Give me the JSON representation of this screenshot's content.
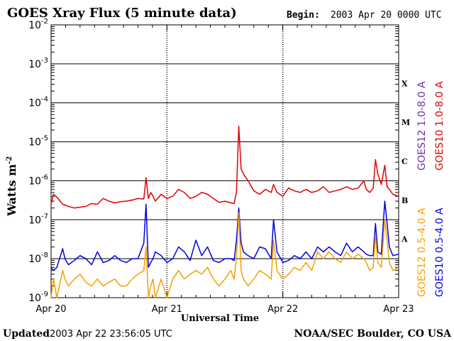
{
  "title": "GOES Xray Flux (5 minute data)",
  "begin_label": "Begin:",
  "begin_value": "2003 Apr 20 0000 UTC",
  "updated_label": "Updated",
  "updated_value": "2003 Apr 22 23:56:05 UTC",
  "credit": "NOAA/SEC Boulder, CO USA",
  "chart_data": {
    "type": "line",
    "ylabel": "Watts m",
    "ylabel_sup": "-2",
    "xlabel": "Universal Time",
    "y_scale": "log",
    "ylim": [
      "1e-9",
      "1e-2"
    ],
    "y_ticks": [
      {
        "base": "10",
        "exp": "-2"
      },
      {
        "base": "10",
        "exp": "-3"
      },
      {
        "base": "10",
        "exp": "-4"
      },
      {
        "base": "10",
        "exp": "-5"
      },
      {
        "base": "10",
        "exp": "-6"
      },
      {
        "base": "10",
        "exp": "-7"
      },
      {
        "base": "10",
        "exp": "-8"
      },
      {
        "base": "10",
        "exp": "-9"
      }
    ],
    "x_ticks": [
      "Apr 20",
      "Apr 21",
      "Apr 22",
      "Apr 23"
    ],
    "xlim_days": [
      0,
      3
    ],
    "flare_classes": [
      "X",
      "M",
      "C",
      "B",
      "A"
    ],
    "grid": true,
    "legend": "right side, rotated vertical",
    "legend_entries": {
      "long": [
        "GOES12 1.0-8.0 A",
        "GOES10 1.0-8.0 A"
      ],
      "short": [
        "GOES12 0.5-4.0 A",
        "GOES10 0.5-4.0 A"
      ]
    },
    "series": [
      {
        "name": "GOES10 1.0-8.0 A",
        "color": "#e00000",
        "x": [
          0,
          0.02,
          0.05,
          0.1,
          0.15,
          0.2,
          0.25,
          0.3,
          0.35,
          0.4,
          0.45,
          0.5,
          0.55,
          0.6,
          0.65,
          0.7,
          0.75,
          0.8,
          0.82,
          0.84,
          0.86,
          0.88,
          0.9,
          0.95,
          1.0,
          1.05,
          1.1,
          1.15,
          1.2,
          1.25,
          1.3,
          1.35,
          1.4,
          1.45,
          1.5,
          1.55,
          1.58,
          1.6,
          1.62,
          1.64,
          1.66,
          1.7,
          1.75,
          1.8,
          1.85,
          1.9,
          1.92,
          1.95,
          2.0,
          2.05,
          2.1,
          2.15,
          2.2,
          2.25,
          2.3,
          2.35,
          2.4,
          2.45,
          2.5,
          2.55,
          2.6,
          2.65,
          2.7,
          2.72,
          2.75,
          2.78,
          2.8,
          2.82,
          2.85,
          2.88,
          2.9,
          2.92,
          2.95,
          3.0
        ],
        "y": [
          "2.5e-7",
          "4.5e-7",
          "3.8e-7",
          "2.5e-7",
          "2.2e-7",
          "2.0e-7",
          "2.1e-7",
          "2.2e-7",
          "2.6e-7",
          "2.5e-7",
          "3.5e-7",
          "3.0e-7",
          "2.7e-7",
          "2.9e-7",
          "3.0e-7",
          "3.2e-7",
          "3.5e-7",
          "3.4e-7",
          "1.2e-6",
          "3.5e-7",
          "5.0e-7",
          "4.0e-7",
          "3.0e-7",
          "4.5e-7",
          "3.5e-7",
          "4.0e-7",
          "6.0e-7",
          "5.0e-7",
          "3.5e-7",
          "4.0e-7",
          "5.0e-7",
          "4.5e-7",
          "3.5e-7",
          "2.8e-7",
          "3.0e-7",
          "2.7e-7",
          "2.6e-7",
          "5.0e-7",
          "2.5e-5",
          "2.0e-6",
          "1.5e-6",
          "1.0e-6",
          "5.5e-7",
          "4.5e-7",
          "6.0e-7",
          "5.0e-7",
          "8.0e-7",
          "5.0e-7",
          "4.0e-7",
          "6.5e-7",
          "5.5e-7",
          "5.0e-7",
          "6.0e-7",
          "5.0e-7",
          "5.5e-7",
          "7.0e-7",
          "5.0e-7",
          "5.5e-7",
          "6.0e-7",
          "7.0e-7",
          "6.0e-7",
          "6.5e-7",
          "1.0e-6",
          "6.0e-7",
          "5.0e-7",
          "6.5e-7",
          "3.5e-6",
          "1.5e-6",
          "8.0e-7",
          "2.5e-6",
          "7.0e-7",
          "6.0e-7",
          "4.5e-7",
          "4.0e-7"
        ]
      },
      {
        "name": "GOES10 0.5-4.0 A",
        "color": "#0000e0",
        "x": [
          0,
          0.02,
          0.05,
          0.1,
          0.12,
          0.15,
          0.2,
          0.25,
          0.3,
          0.35,
          0.4,
          0.45,
          0.5,
          0.55,
          0.6,
          0.65,
          0.7,
          0.75,
          0.8,
          0.82,
          0.84,
          0.86,
          0.88,
          0.9,
          0.95,
          1.0,
          1.05,
          1.1,
          1.15,
          1.2,
          1.25,
          1.3,
          1.35,
          1.4,
          1.45,
          1.5,
          1.55,
          1.58,
          1.6,
          1.62,
          1.64,
          1.66,
          1.7,
          1.75,
          1.8,
          1.85,
          1.9,
          1.92,
          1.95,
          2.0,
          2.05,
          2.1,
          2.15,
          2.2,
          2.25,
          2.3,
          2.35,
          2.4,
          2.45,
          2.5,
          2.55,
          2.6,
          2.65,
          2.7,
          2.72,
          2.75,
          2.78,
          2.8,
          2.82,
          2.85,
          2.88,
          2.9,
          2.92,
          2.95,
          3.0
        ],
        "y": [
          "6.0e-9",
          "5.0e-9",
          "6.0e-9",
          "1.8e-8",
          "1.0e-8",
          "7.0e-9",
          "9.0e-9",
          "1.2e-8",
          "1.0e-8",
          "7.0e-9",
          "1.5e-8",
          "8.0e-9",
          "9.0e-9",
          "1.2e-8",
          "9.0e-9",
          "8.0e-9",
          "1.0e-8",
          "1.0e-8",
          "2.5e-8",
          "2.5e-7",
          "6.0e-9",
          "8.0e-9",
          "1.0e-8",
          "1.5e-8",
          "1.2e-8",
          "8.0e-9",
          "1.0e-8",
          "2.0e-8",
          "1.5e-8",
          "9.0e-9",
          "3.0e-8",
          "1.2e-8",
          "2.0e-8",
          "9.0e-9",
          "8.0e-9",
          "1.0e-8",
          "1.0e-8",
          "9.0e-9",
          "3.0e-8",
          "2.0e-7",
          "2.5e-8",
          "1.5e-8",
          "1.2e-8",
          "1.0e-8",
          "2.0e-8",
          "1.8e-8",
          "1.0e-8",
          "1.0e-7",
          "1.5e-8",
          "8.0e-9",
          "9.0e-9",
          "1.2e-8",
          "1.0e-8",
          "1.5e-8",
          "1.0e-8",
          "2.0e-8",
          "1.5e-8",
          "2.0e-8",
          "1.5e-8",
          "1.2e-8",
          "2.5e-8",
          "1.5e-8",
          "2.0e-8",
          "1.5e-8",
          "1.3e-8",
          "1.2e-8",
          "1.2e-8",
          "8.0e-8",
          "1.5e-8",
          "1.3e-8",
          "3.0e-7",
          "8.0e-8",
          "2.0e-8",
          "1.2e-8",
          "1.3e-8"
        ]
      },
      {
        "name": "GOES12 0.5-4.0 A",
        "color": "#f5a000",
        "x": [
          0,
          0.02,
          0.05,
          0.1,
          0.12,
          0.15,
          0.2,
          0.25,
          0.3,
          0.35,
          0.4,
          0.45,
          0.5,
          0.55,
          0.6,
          0.65,
          0.7,
          0.75,
          0.8,
          0.82,
          0.84,
          0.86,
          0.88,
          0.9,
          0.95,
          1.0,
          1.05,
          1.1,
          1.15,
          1.2,
          1.25,
          1.3,
          1.35,
          1.4,
          1.45,
          1.5,
          1.55,
          1.58,
          1.6,
          1.62,
          1.64,
          1.66,
          1.7,
          1.75,
          1.8,
          1.85,
          1.9,
          1.92,
          1.95,
          2.0,
          2.05,
          2.1,
          2.15,
          2.2,
          2.25,
          2.3,
          2.35,
          2.4,
          2.45,
          2.5,
          2.55,
          2.6,
          2.65,
          2.7,
          2.72,
          2.75,
          2.78,
          2.8,
          2.82,
          2.85,
          2.88,
          2.9,
          2.92,
          2.95,
          3.0
        ],
        "y": [
          "1.0e-9",
          "3.0e-9",
          "1.0e-9",
          "5.0e-9",
          "3.0e-9",
          "2.0e-9",
          "3.0e-9",
          "4.0e-9",
          "2.5e-9",
          "2.0e-9",
          "3.0e-9",
          "2.0e-9",
          "2.5e-9",
          "3.0e-9",
          "2.0e-9",
          "2.0e-9",
          "3.0e-9",
          "4.0e-9",
          "5.0e-9",
          "2.0e-8",
          "1.0e-9",
          "2.0e-9",
          "3.0e-9",
          "1.0e-9",
          "3.0e-9",
          "1.0e-9",
          "3.0e-9",
          "5.0e-9",
          "3.0e-9",
          "4.0e-9",
          "5.0e-9",
          "4.0e-9",
          "6.0e-9",
          "3.0e-9",
          "2.0e-9",
          "3.0e-9",
          "5.0e-9",
          "3.0e-9",
          "1.0e-8",
          "1.5e-7",
          "5.0e-9",
          "3.0e-9",
          "2.0e-9",
          "3.0e-9",
          "5.0e-9",
          "4.0e-9",
          "3.0e-9",
          "3.0e-8",
          "5.0e-9",
          "3.0e-9",
          "4.0e-9",
          "6.0e-9",
          "5.0e-9",
          "8.0e-9",
          "5.0e-9",
          "1.5e-8",
          "1.0e-8",
          "1.5e-8",
          "1.0e-8",
          "8.0e-9",
          "1.5e-8",
          "1.0e-8",
          "1.3e-8",
          "1.0e-8",
          "8.0e-9",
          "5.0e-9",
          "6.0e-9",
          "4.0e-8",
          "8.0e-9",
          "6.0e-9",
          "1.0e-7",
          "3.0e-8",
          "8.0e-9",
          "5.0e-9",
          "6.0e-9"
        ]
      }
    ]
  }
}
